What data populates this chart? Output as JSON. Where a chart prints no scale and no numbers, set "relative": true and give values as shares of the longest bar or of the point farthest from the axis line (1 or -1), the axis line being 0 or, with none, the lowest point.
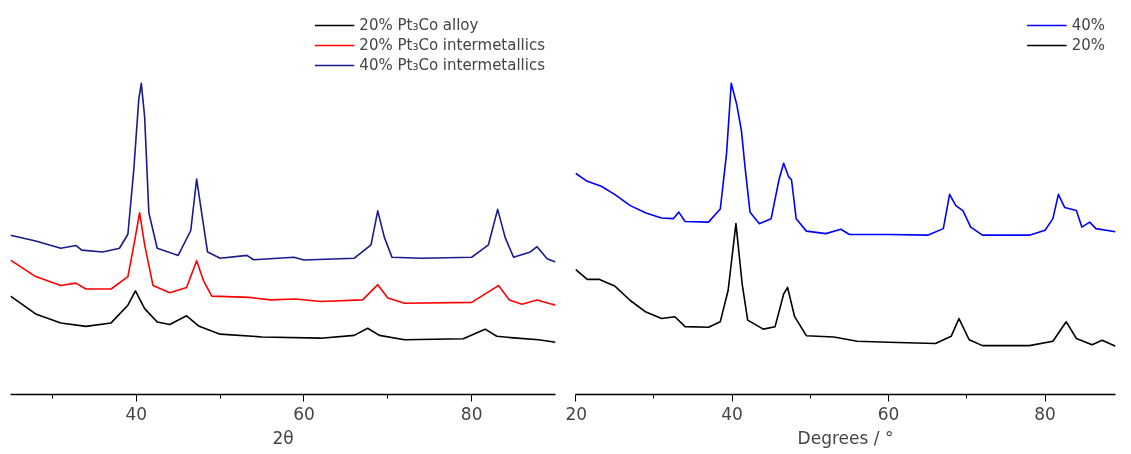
{
  "chart_data": [
    {
      "type": "line",
      "xlabel": "2θ",
      "relative": true,
      "legend": "top right",
      "xlim": [
        25,
        90
      ],
      "xticks": [
        {
          "value": 30,
          "label": null
        },
        40,
        {
          "value": 50,
          "label": null
        },
        60,
        {
          "value": 70,
          "label": null
        },
        80
      ],
      "series": [
        {
          "name": "20% Pt₃Co alloy",
          "color": "#000000",
          "x": [
            25,
            28,
            31,
            34,
            37,
            39,
            39.9,
            41,
            42.5,
            44,
            46,
            47.5,
            50,
            55,
            62,
            66,
            67.6,
            69,
            72,
            79,
            81.6,
            83,
            85,
            88,
            90
          ],
          "values": [
            0.316,
            0.259,
            0.23,
            0.219,
            0.23,
            0.287,
            0.333,
            0.276,
            0.233,
            0.225,
            0.253,
            0.219,
            0.194,
            0.185,
            0.181,
            0.19,
            0.213,
            0.19,
            0.176,
            0.179,
            0.21,
            0.187,
            0.182,
            0.176,
            0.168
          ]
        },
        {
          "name": "20% Pt₃Co intermetallics",
          "color": "#ff0000",
          "x": [
            25,
            28,
            31,
            32.8,
            34,
            37,
            39,
            39.8,
            40.4,
            41,
            42,
            44,
            46,
            47.2,
            48,
            49,
            53.5,
            56,
            59,
            62,
            67,
            68.8,
            70,
            72,
            80,
            83.2,
            84.5,
            86,
            87.8,
            90
          ],
          "values": [
            0.432,
            0.379,
            0.35,
            0.358,
            0.339,
            0.339,
            0.379,
            0.493,
            0.584,
            0.481,
            0.35,
            0.327,
            0.344,
            0.43,
            0.367,
            0.316,
            0.312,
            0.304,
            0.307,
            0.299,
            0.304,
            0.353,
            0.31,
            0.293,
            0.296,
            0.35,
            0.304,
            0.29,
            0.304,
            0.287
          ]
        },
        {
          "name": "40% Pt₃Co intermetallics",
          "color": "#1a1a8c",
          "x": [
            25,
            28,
            31,
            32.8,
            33.5,
            36,
            38,
            39,
            39.7,
            40.3,
            40.6,
            41,
            41.5,
            42.5,
            45,
            46.5,
            47.2,
            47.8,
            48.5,
            50,
            53.2,
            54,
            58.8,
            60,
            66,
            68,
            68.8,
            69.6,
            70.5,
            74,
            80,
            82,
            83.1,
            84,
            85,
            87,
            87.8,
            89,
            90
          ],
          "values": [
            0.512,
            0.493,
            0.47,
            0.479,
            0.464,
            0.458,
            0.47,
            0.515,
            0.721,
            0.949,
            1.0,
            0.892,
            0.584,
            0.47,
            0.447,
            0.527,
            0.692,
            0.584,
            0.458,
            0.438,
            0.447,
            0.433,
            0.441,
            0.432,
            0.438,
            0.481,
            0.59,
            0.504,
            0.441,
            0.438,
            0.441,
            0.481,
            0.595,
            0.504,
            0.441,
            0.458,
            0.475,
            0.436,
            0.426
          ]
        }
      ]
    },
    {
      "type": "line",
      "xlabel": "Degrees / °",
      "relative": true,
      "legend": "top right",
      "xlim": [
        20,
        89
      ],
      "xticks": [
        20,
        {
          "value": 30,
          "label": null
        },
        40,
        {
          "value": 50,
          "label": null
        },
        60,
        {
          "value": 70,
          "label": null
        },
        80
      ],
      "series": [
        {
          "name": "40%",
          "color": "#0000ff",
          "x": [
            20,
            21.5,
            23.3,
            25,
            27,
            29,
            31,
            32.5,
            33.2,
            34,
            37,
            38.5,
            39.3,
            39.9,
            40.6,
            41.2,
            41.7,
            42.3,
            43.5,
            45,
            46,
            46.6,
            47.2,
            47.6,
            48.2,
            49.5,
            52,
            53.9,
            55,
            60,
            65,
            67,
            67.8,
            68.6,
            69.5,
            70.5,
            72,
            78,
            80,
            81,
            81.7,
            82.5,
            84,
            84.7,
            85.7,
            86.5,
            89
          ],
          "values": [
            0.711,
            0.685,
            0.669,
            0.643,
            0.607,
            0.583,
            0.567,
            0.565,
            0.586,
            0.556,
            0.554,
            0.596,
            0.774,
            1.0,
            0.932,
            0.848,
            0.722,
            0.586,
            0.549,
            0.565,
            0.69,
            0.743,
            0.701,
            0.69,
            0.565,
            0.525,
            0.517,
            0.531,
            0.514,
            0.514,
            0.512,
            0.533,
            0.643,
            0.607,
            0.591,
            0.538,
            0.512,
            0.512,
            0.528,
            0.565,
            0.643,
            0.601,
            0.591,
            0.538,
            0.554,
            0.533,
            0.523
          ]
        },
        {
          "name": "20%",
          "color": "#000000",
          "x": [
            20,
            21.5,
            23,
            25,
            27,
            29,
            31,
            32.7,
            34,
            37,
            38.5,
            39.5,
            40.5,
            41.3,
            42,
            44,
            45.5,
            46.6,
            47.1,
            48,
            49.5,
            53,
            56,
            60,
            66,
            68,
            69,
            70.3,
            72,
            78,
            81,
            82.7,
            84,
            86,
            87.3,
            89
          ],
          "values": [
            0.402,
            0.37,
            0.37,
            0.349,
            0.302,
            0.265,
            0.244,
            0.25,
            0.218,
            0.216,
            0.234,
            0.334,
            0.549,
            0.355,
            0.239,
            0.21,
            0.218,
            0.323,
            0.344,
            0.25,
            0.189,
            0.185,
            0.171,
            0.168,
            0.164,
            0.187,
            0.244,
            0.176,
            0.157,
            0.157,
            0.171,
            0.234,
            0.18,
            0.16,
            0.174,
            0.155
          ]
        }
      ]
    }
  ]
}
